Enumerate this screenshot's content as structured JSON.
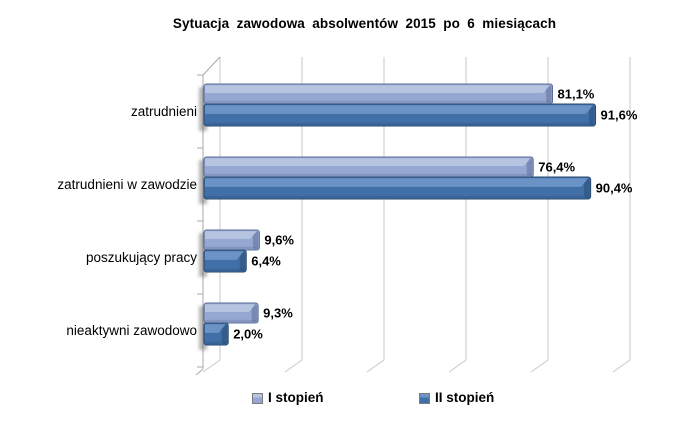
{
  "chart_data": {
    "type": "bar",
    "orientation": "horizontal",
    "title": "Sytuacja zawodowa absolwentów 2015 po 6 miesiącach",
    "categories": [
      "zatrudnieni",
      "zatrudnieni w zawodzie",
      "poszukujący pracy",
      "nieaktywni zawodowo"
    ],
    "series": [
      {
        "name": "I stopień",
        "color": "#95A8D1",
        "color_light": "#B7C5E2",
        "color_dark": "#5C6C96",
        "values": [
          81.1,
          76.4,
          9.6,
          9.3
        ],
        "labels": [
          "81,1%",
          "76,4%",
          "9,6%",
          "9,3%"
        ]
      },
      {
        "name": "II stopień",
        "color": "#4170A8",
        "color_light": "#6E95C6",
        "color_dark": "#27496F",
        "values": [
          91.6,
          90.4,
          6.4,
          2.0
        ],
        "labels": [
          "91,6%",
          "90,4%",
          "6,4%",
          "2,0%"
        ]
      }
    ],
    "xlim": [
      0,
      100
    ],
    "grid": true,
    "grid_step_percent": 20,
    "gridline_color": "#C8C8C8",
    "axis_color": "#A8A8A8",
    "legend_position": "bottom",
    "style": "3d-clustered-bar"
  }
}
